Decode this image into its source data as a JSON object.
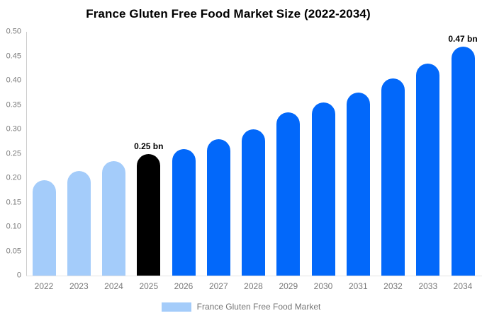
{
  "title": "France Gluten Free Food Market Size (2022-2034)",
  "chart_data": {
    "type": "bar",
    "title": "France Gluten Free Food Market Size (2022-2034)",
    "categories": [
      "2022",
      "2023",
      "2024",
      "2025",
      "2026",
      "2027",
      "2028",
      "2029",
      "2030",
      "2031",
      "2032",
      "2033",
      "2034"
    ],
    "values": [
      0.195,
      0.215,
      0.235,
      0.25,
      0.26,
      0.28,
      0.3,
      0.335,
      0.355,
      0.375,
      0.405,
      0.435,
      0.47
    ],
    "unit": "bn",
    "xlabel": "",
    "ylabel": "",
    "ylim": [
      0,
      0.5
    ],
    "grid": false,
    "y_tick_labels": [
      "0.50",
      "0.45",
      "0.40",
      "0.35",
      "0.30",
      "0.25",
      "0.20",
      "0.15",
      "0.10",
      "0.05",
      "0"
    ],
    "bar_colors": [
      "#A4CCFA",
      "#A4CCFA",
      "#A4CCFA",
      "#000000",
      "#0268FA",
      "#0268FA",
      "#0268FA",
      "#0268FA",
      "#0268FA",
      "#0268FA",
      "#0268FA",
      "#0268FA",
      "#0268FA"
    ],
    "color_roles": {
      "historical": "#A4CCFA",
      "base_year": "#000000",
      "forecast": "#0268FA"
    },
    "annotations": [
      {
        "index": 3,
        "text": "0.25 bn"
      },
      {
        "index": 12,
        "text": "0.47 bn"
      }
    ],
    "legend": {
      "position": "bottom",
      "label": "France Gluten Free Food Market",
      "swatch_color": "#A4CCFA"
    }
  }
}
